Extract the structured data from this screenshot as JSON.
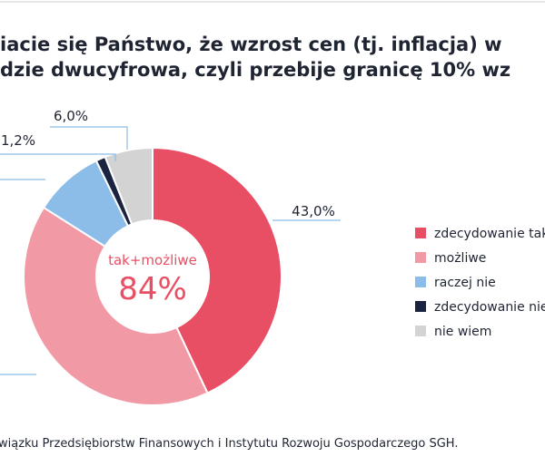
{
  "chart_data": {
    "type": "pie",
    "title": [
      "iacie się Państwo, że wzrost cen (tj. inflacja) w",
      "dzie dwucyfrowa, czyli przebije granicę 10% wz"
    ],
    "categories": [
      "zdecydowanie tak",
      "możliwe",
      "raczej nie",
      "zdecydowanie nie",
      "nie wiem"
    ],
    "values": [
      43.0,
      41.0,
      8.8,
      1.2,
      6.0
    ],
    "value_labels": [
      "43,0%",
      null,
      null,
      "1,2%",
      "6,0%"
    ],
    "colors": [
      "#e94f64",
      "#f19aa5",
      "#8bbde8",
      "#1a2340",
      "#d3d3d3"
    ],
    "annotations": [
      "tak+możliwe",
      "84%"
    ],
    "source": "wiązku Przedsiębiorstw Finansowych i Instytutu Rozwoju Gospodarczego SGH.",
    "legend": "right"
  }
}
